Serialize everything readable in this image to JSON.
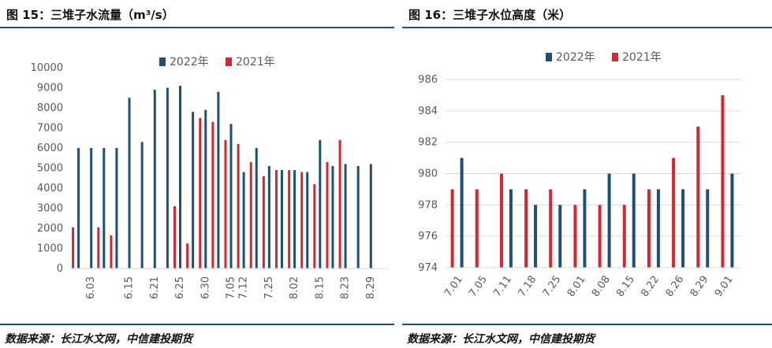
{
  "colors": {
    "series_2022": "#1f4e79",
    "series_2021": "#d7262e",
    "rule": "#1f4e79",
    "grid": "#d9d9d9"
  },
  "left": {
    "title": "图 15：三堆子水流量（m³/s）",
    "source": "数据来源：长江水文网，中信建投期货"
  },
  "right": {
    "title": "图 16：三堆子水位高度（米）",
    "source": "数据来源：长江水文网，中信建投期货"
  },
  "chart_data": [
    {
      "type": "bar",
      "title": "",
      "xlabel": "",
      "ylabel": "",
      "ylim": [
        0,
        10000
      ],
      "yticks": [
        0,
        1000,
        2000,
        3000,
        4000,
        5000,
        6000,
        7000,
        8000,
        9000,
        10000
      ],
      "grid": false,
      "legend_position": "top",
      "categories": [
        "",
        "6.03",
        "",
        "",
        "6.15",
        "",
        "6.21",
        "",
        "6.25",
        "",
        "6.30",
        "",
        "7.05",
        "7.12",
        "",
        "7.25",
        "",
        "8.02",
        "",
        "8.15",
        "",
        "8.23",
        "",
        "8.29",
        ""
      ],
      "series": [
        {
          "name": "2022年",
          "values": [
            6000,
            6000,
            6000,
            6000,
            8500,
            6300,
            8900,
            9000,
            9100,
            7800,
            7900,
            8800,
            7200,
            4800,
            6000,
            5100,
            4900,
            4900,
            4800,
            6400,
            5100,
            5200,
            5100,
            5200,
            null
          ]
        },
        {
          "name": "2021年",
          "values": [
            2050,
            null,
            2050,
            1650,
            null,
            null,
            null,
            null,
            3100,
            1250,
            7500,
            7300,
            6400,
            6200,
            5300,
            4600,
            4900,
            4900,
            4800,
            4200,
            5300,
            6400,
            null,
            null,
            null
          ]
        }
      ]
    },
    {
      "type": "bar",
      "title": "",
      "xlabel": "",
      "ylabel": "",
      "ylim": [
        974,
        986
      ],
      "yticks": [
        974,
        976,
        978,
        980,
        982,
        984,
        986
      ],
      "grid": true,
      "legend_position": "top",
      "categories": [
        "7.01",
        "7.05",
        "7.11",
        "7.18",
        "7.25",
        "8.01",
        "8.08",
        "8.15",
        "8.22",
        "8.26",
        "8.29",
        "9.01"
      ],
      "series": [
        {
          "name": "2022年",
          "values": [
            981,
            null,
            979,
            978,
            978,
            979,
            980,
            980,
            979,
            979,
            979,
            980
          ]
        },
        {
          "name": "2021年",
          "values": [
            979,
            979,
            980,
            979,
            979,
            978,
            978,
            978,
            979,
            981,
            983,
            985
          ]
        }
      ]
    }
  ]
}
